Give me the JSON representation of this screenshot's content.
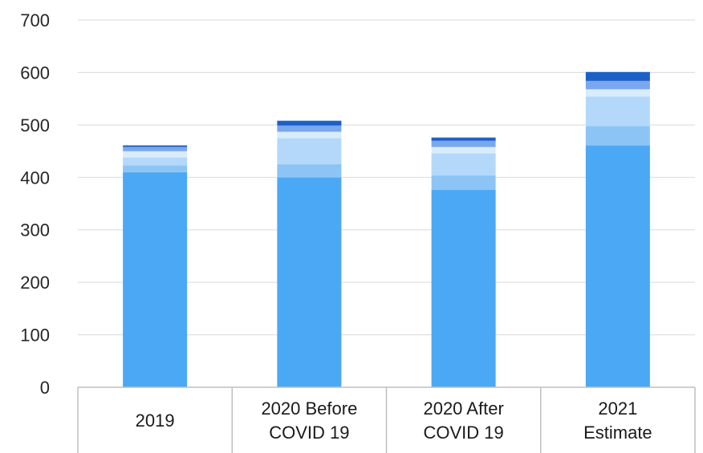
{
  "chart_data": {
    "type": "bar",
    "stacked": true,
    "title": "",
    "xlabel": "",
    "ylabel": "",
    "ylim": [
      0,
      700
    ],
    "yticks": [
      0,
      100,
      200,
      300,
      400,
      500,
      600,
      700
    ],
    "grid": true,
    "legend": "none",
    "categories": [
      [
        "2019"
      ],
      [
        "2020 Before",
        "COVID 19"
      ],
      [
        "2020 After",
        "COVID 19"
      ],
      [
        "2021",
        "Estimate"
      ]
    ],
    "series": [
      {
        "color": "#4aa8f5",
        "values": [
          410,
          400,
          376,
          461
        ]
      },
      {
        "color": "#8cc4f6",
        "values": [
          13,
          25,
          28,
          37
        ]
      },
      {
        "color": "#b3d8fa",
        "values": [
          15,
          50,
          42,
          56
        ]
      },
      {
        "color": "#d9ecfc",
        "values": [
          12,
          12,
          12,
          14
        ]
      },
      {
        "color": "#7aa7ee",
        "values": [
          8,
          12,
          12,
          16
        ]
      },
      {
        "color": "#1c5fc6",
        "values": [
          3,
          9,
          6,
          17
        ]
      }
    ]
  }
}
